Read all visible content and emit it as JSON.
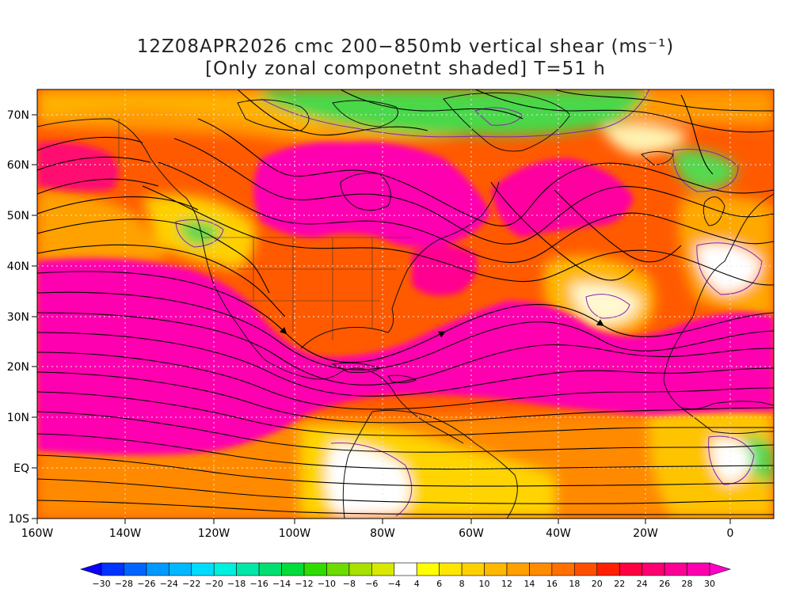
{
  "title_line1": "12Z08APR2026 cmc 200−850mb vertical shear (ms⁻¹)",
  "title_line2": "[Only zonal componetnt shaded] T=51 h",
  "lat_labels": [
    "70N",
    "60N",
    "50N",
    "40N",
    "30N",
    "20N",
    "10N",
    "EQ",
    "10S"
  ],
  "lon_labels": [
    "160W",
    "140W",
    "120W",
    "100W",
    "80W",
    "60W",
    "40W",
    "20W",
    "0"
  ],
  "colorbar": {
    "ticks": [
      "−30",
      "−28",
      "−26",
      "−24",
      "−22",
      "−20",
      "−18",
      "−16",
      "−14",
      "−12",
      "−10",
      "−8",
      "−6",
      "−4",
      "4",
      "6",
      "8",
      "10",
      "12",
      "14",
      "16",
      "18",
      "20",
      "22",
      "24",
      "26",
      "28",
      "30"
    ],
    "colors": [
      "#0a00ff",
      "#0033ff",
      "#0066ff",
      "#0099ff",
      "#00b8ff",
      "#00dcff",
      "#00f0e0",
      "#00e8a8",
      "#00e070",
      "#00dc3c",
      "#30dc00",
      "#6cdc00",
      "#a8e000",
      "#d8e800",
      "#ffffff",
      "#ffff00",
      "#ffe600",
      "#ffd000",
      "#ffb800",
      "#ffa000",
      "#ff8c00",
      "#ff7000",
      "#ff5000",
      "#ff2000",
      "#ff0040",
      "#ff0070",
      "#ff0096",
      "#ff00b0",
      "#ff00c8"
    ]
  },
  "map_colors": {
    "ocean_core": "#ff00b4",
    "strong": "#ff2050",
    "medium": "#ff7a00",
    "weak": "#ffd000",
    "negative": "#4cdc3c",
    "neutral": "#ffffff",
    "contour": "#8a1fb0",
    "grid": "#e8e8e8"
  }
}
